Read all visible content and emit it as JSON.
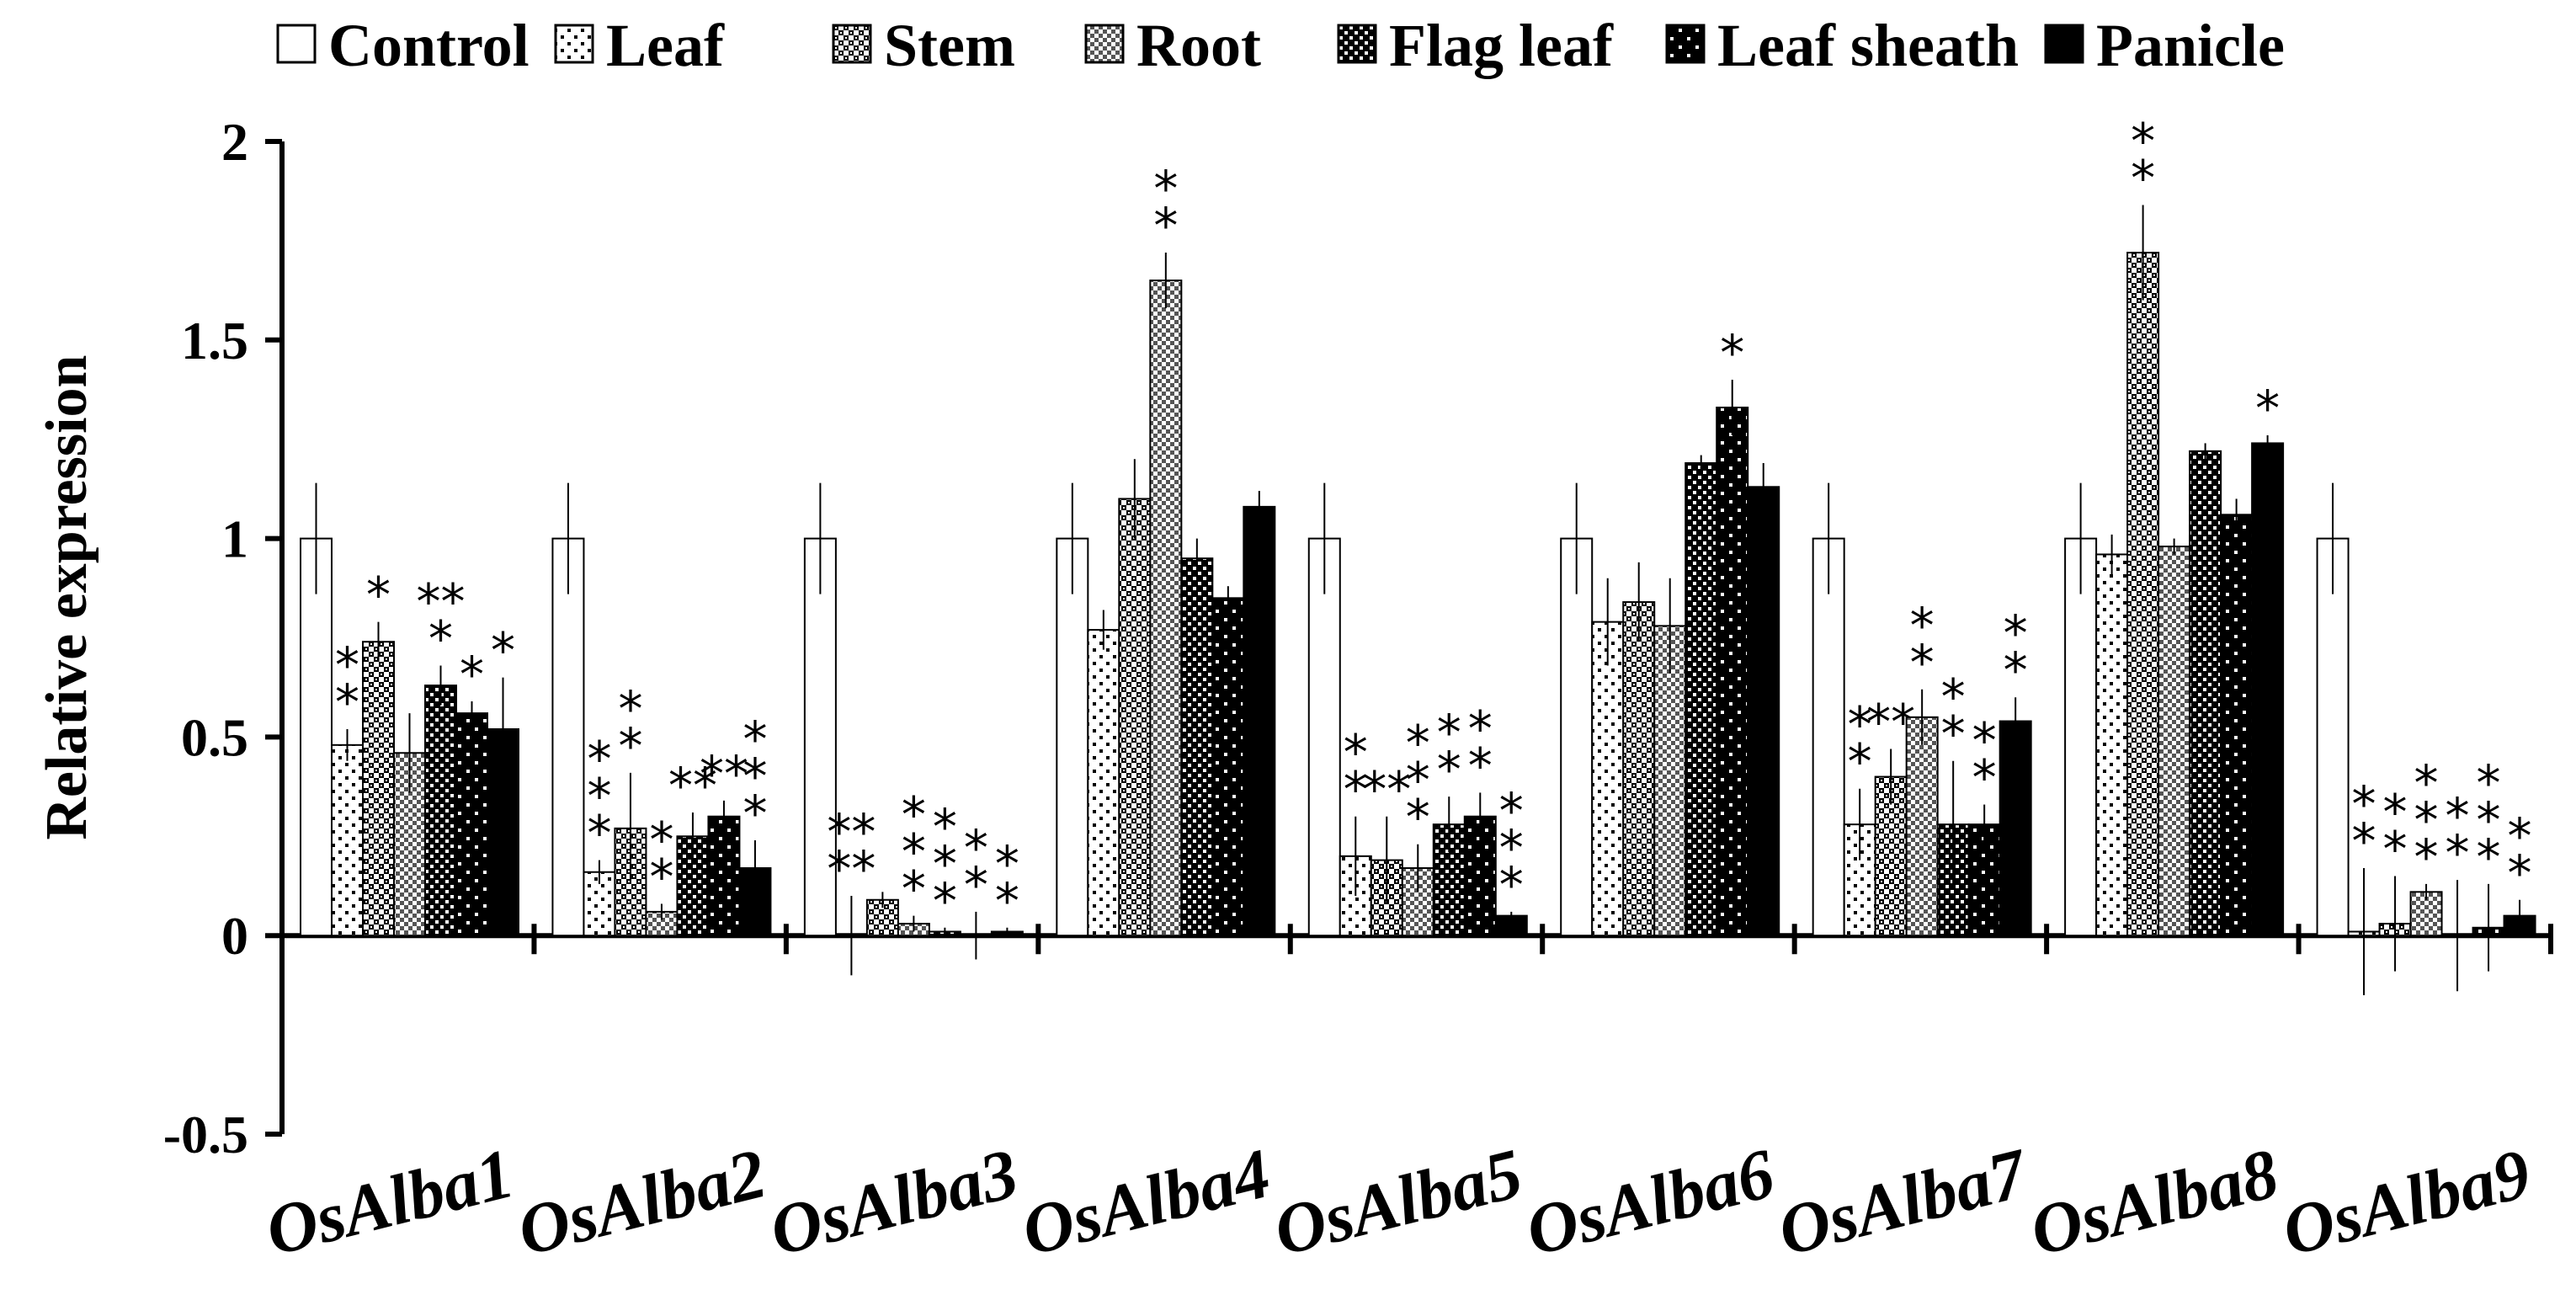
{
  "chart_data": {
    "type": "bar",
    "title": "",
    "xlabel": "",
    "ylabel": "Relative expression",
    "ylim": [
      -0.5,
      2
    ],
    "yticks": [
      "2",
      "1.5",
      "1",
      "0.5",
      "0",
      "-0.5"
    ],
    "ytick_values": [
      2,
      1.5,
      1,
      0.5,
      0,
      -0.5
    ],
    "grid": false,
    "legend_position": "top",
    "categories": [
      "OsAlba1",
      "OsAlba2",
      "OsAlba3",
      "OsAlba4",
      "OsAlba5",
      "OsAlba6",
      "OsAlba7",
      "OsAlba8",
      "OsAlba9"
    ],
    "series": [
      {
        "name": "Control",
        "pattern": "control",
        "values": [
          1,
          1,
          1,
          1,
          1,
          1,
          1,
          1,
          1
        ],
        "errors": [
          0.14,
          0.14,
          0.14,
          0.14,
          0.14,
          0.14,
          0.14,
          0.14,
          0.14
        ],
        "sig": [
          "",
          "",
          "",
          "",
          "",
          "",
          "",
          "",
          ""
        ]
      },
      {
        "name": "Leaf",
        "pattern": "leaf",
        "values": [
          0.48,
          0.16,
          0.0,
          0.77,
          0.2,
          0.79,
          0.28,
          0.96,
          0.01
        ],
        "errors": [
          0.04,
          0.03,
          0.1,
          0.05,
          0.1,
          0.11,
          0.09,
          0.05,
          0.16
        ],
        "sig": [
          "*|*",
          "*|*|*",
          "**|**",
          "",
          "*|*",
          "",
          "*|*",
          "",
          "*|*"
        ]
      },
      {
        "name": "Stem",
        "pattern": "stem",
        "values": [
          0.74,
          0.27,
          0.09,
          1.1,
          0.19,
          0.84,
          0.4,
          1.72,
          0.03
        ],
        "errors": [
          0.05,
          0.14,
          0.02,
          0.1,
          0.11,
          0.1,
          0.07,
          0.12,
          0.12
        ],
        "sig": [
          "*",
          "*|*",
          "",
          "",
          "**",
          "",
          "**",
          "*|*",
          "*|*"
        ]
      },
      {
        "name": "Root",
        "pattern": "root",
        "values": [
          0.46,
          0.06,
          0.03,
          1.65,
          0.17,
          0.78,
          0.55,
          0.98,
          0.11
        ],
        "errors": [
          0.1,
          0.02,
          0.02,
          0.07,
          0.06,
          0.12,
          0.07,
          0.02,
          0.02
        ],
        "sig": [
          "",
          "*|*",
          "*|*|*",
          "*|*",
          "*|*|*",
          "",
          "*|*",
          "",
          "*|*|*"
        ]
      },
      {
        "name": "Flag leaf",
        "pattern": "flag",
        "values": [
          0.63,
          0.25,
          0.01,
          0.95,
          0.28,
          1.19,
          0.28,
          1.22,
          0.0
        ],
        "errors": [
          0.05,
          0.06,
          0.01,
          0.05,
          0.07,
          0.02,
          0.16,
          0.02,
          0.14
        ],
        "sig": [
          "**|*",
          "**",
          "*|*|*",
          "",
          "*|*",
          "",
          "*|*",
          "",
          "*|*"
        ]
      },
      {
        "name": "Leaf sheath",
        "pattern": "sheath",
        "values": [
          0.56,
          0.3,
          0.0,
          0.85,
          0.3,
          1.33,
          0.28,
          1.06,
          0.02
        ],
        "errors": [
          0.03,
          0.04,
          0.06,
          0.03,
          0.06,
          0.07,
          0.05,
          0.04,
          0.11
        ],
        "sig": [
          "*",
          "**",
          "*|*",
          "",
          "*|*",
          "*",
          "*|*",
          "",
          "*|*|*"
        ]
      },
      {
        "name": "Panicle",
        "pattern": "panicle",
        "values": [
          0.52,
          0.17,
          0.01,
          1.08,
          0.05,
          1.13,
          0.54,
          1.24,
          0.05
        ],
        "errors": [
          0.13,
          0.07,
          0.01,
          0.04,
          0.01,
          0.06,
          0.06,
          0.02,
          0.04
        ],
        "sig": [
          "*",
          "*|*|*",
          "*|*",
          "",
          "*|*|*",
          "",
          "*|*",
          "*",
          "*|*"
        ]
      }
    ]
  }
}
